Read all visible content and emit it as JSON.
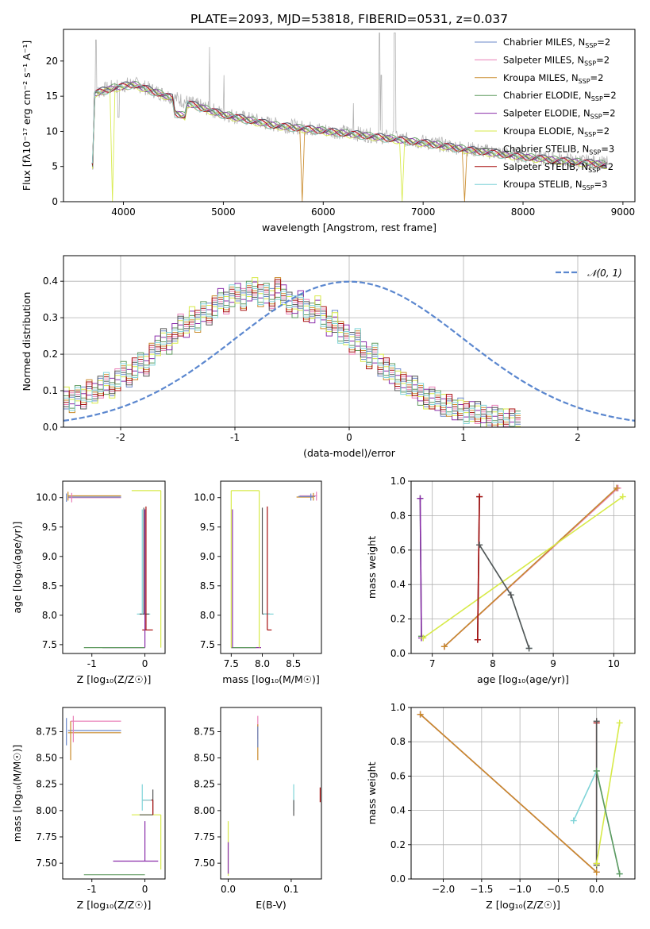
{
  "figure_title": "PLATE=2093, MJD=53818, FIBERID=0531, z=0.037",
  "colors": {
    "Chabrier MILES": "#6a87c9",
    "Salpeter MILES": "#e97fb7",
    "Kroupa MILES": "#c98a2a",
    "Chabrier ELODIE": "#5f9a5f",
    "Salpeter ELODIE": "#8a2eaa",
    "Kroupa ELODIE": "#d7ea48",
    "Chabrier STELIB": "#555555",
    "Salpeter STELIB": "#a80f0f",
    "Kroupa STELIB": "#80d4d8",
    "data": "#b4b4b4",
    "gauss": "#5b87cf",
    "grid": "#b0b0b0"
  },
  "chart_data": [
    {
      "id": "spectrum",
      "type": "line",
      "xlabel": "wavelength [Angstrom, rest frame]",
      "ylabel": "Flux [fλ10⁻¹⁷ erg cm⁻² s⁻¹ A⁻¹]",
      "xlim": [
        3400,
        9120
      ],
      "ylim": [
        0,
        24.5
      ],
      "xticks": [
        4000,
        5000,
        6000,
        7000,
        8000,
        9000
      ],
      "yticks": [
        0,
        5,
        10,
        15,
        20
      ],
      "grid": false,
      "legend_position": "top-right",
      "continuum": {
        "x": [
          3700,
          3900,
          4100,
          4300,
          4500,
          5000,
          5500,
          6000,
          6500,
          7000,
          7500,
          8000,
          8500,
          8850
        ],
        "y": [
          15.5,
          16.3,
          16.8,
          15.8,
          14.8,
          12.5,
          11.0,
          10.2,
          9.4,
          8.5,
          7.4,
          6.5,
          5.8,
          5.4
        ]
      },
      "dips": [
        {
          "series": "Kroupa ELODIE",
          "x": 3900
        },
        {
          "series": "Kroupa MILES",
          "x": 5790
        },
        {
          "series": "Kroupa ELODIE",
          "x": 6800
        },
        {
          "series": "Kroupa MILES",
          "x": 7420
        }
      ],
      "legend": [
        {
          "name": "Chabrier MILES",
          "label": "Chabrier MILES, N",
          "sub": "SSP",
          "suffix": "=2"
        },
        {
          "name": "Salpeter MILES",
          "label": "Salpeter MILES, N",
          "sub": "SSP",
          "suffix": "=2"
        },
        {
          "name": "Kroupa MILES",
          "label": "Kroupa MILES, N",
          "sub": "SSP",
          "suffix": "=2"
        },
        {
          "name": "Chabrier ELODIE",
          "label": "Chabrier ELODIE, N",
          "sub": "SSP",
          "suffix": "=2"
        },
        {
          "name": "Salpeter ELODIE",
          "label": "Salpeter ELODIE, N",
          "sub": "SSP",
          "suffix": "=2"
        },
        {
          "name": "Kroupa ELODIE",
          "label": "Kroupa ELODIE, N",
          "sub": "SSP",
          "suffix": "=2"
        },
        {
          "name": "Chabrier STELIB",
          "label": "Chabrier STELIB, N",
          "sub": "SSP",
          "suffix": "=3"
        },
        {
          "name": "Salpeter STELIB",
          "label": "Salpeter STELIB, N",
          "sub": "SSP",
          "suffix": "=2"
        },
        {
          "name": "Kroupa STELIB",
          "label": "Kroupa STELIB, N",
          "sub": "SSP",
          "suffix": "=3"
        }
      ]
    },
    {
      "id": "residual-histogram",
      "type": "line",
      "xlabel": "(data-model)/error",
      "ylabel": "Normed distribution",
      "xlim": [
        -2.5,
        2.5
      ],
      "ylim": [
        0,
        0.47
      ],
      "xticks": [
        -2,
        -1,
        0,
        1,
        2
      ],
      "yticks": [
        0.0,
        0.1,
        0.2,
        0.3,
        0.4
      ],
      "grid": true,
      "legend_position": "top-right",
      "legend": [
        {
          "name": "gauss",
          "label": "𝒩(0, 1)"
        }
      ],
      "bin_width": 0.1,
      "bin_start": -2.5,
      "base_values": [
        0.08,
        0.07,
        0.09,
        0.08,
        0.1,
        0.09,
        0.11,
        0.12,
        0.11,
        0.13,
        0.15,
        0.14,
        0.16,
        0.18,
        0.17,
        0.2,
        0.22,
        0.24,
        0.23,
        0.26,
        0.28,
        0.27,
        0.3,
        0.29,
        0.32,
        0.31,
        0.33,
        0.35,
        0.34,
        0.36,
        0.37,
        0.35,
        0.37,
        0.38,
        0.36,
        0.37,
        0.35,
        0.38,
        0.36,
        0.34,
        0.33,
        0.35,
        0.32,
        0.31,
        0.33,
        0.3,
        0.28,
        0.29,
        0.26,
        0.25,
        0.23,
        0.24,
        0.21,
        0.19,
        0.2,
        0.17,
        0.16,
        0.15,
        0.13,
        0.12,
        0.11,
        0.11,
        0.09,
        0.08,
        0.08,
        0.07,
        0.06,
        0.06,
        0.05,
        0.05,
        0.04,
        0.04,
        0.04,
        0.03,
        0.03,
        0.03,
        0.02,
        0.02,
        0.02,
        0.02
      ],
      "gauss": {
        "mean": 0,
        "sigma": 1
      }
    },
    {
      "id": "age-vs-Z",
      "type": "scatter",
      "xlabel": "Z [log₁₀(Z/Z☉)]",
      "ylabel": "age  [log₁₀(age/yr)]",
      "xlim": [
        -1.55,
        0.38
      ],
      "ylim": [
        7.35,
        10.28
      ],
      "xticks": [
        -1,
        0
      ],
      "yticks": [
        7.5,
        8.0,
        8.5,
        9.0,
        9.5,
        10.0
      ],
      "grid": false,
      "segments": [
        {
          "series": "Salpeter MILES",
          "x0": -1.45,
          "x1": -0.45,
          "y": 10.0
        },
        {
          "series": "Kroupa MILES",
          "x0": -1.45,
          "x1": -0.45,
          "y": 10.03
        },
        {
          "series": "Chabrier MILES",
          "x0": -1.45,
          "x1": -0.45,
          "y": 10.01
        },
        {
          "series": "Kroupa ELODIE",
          "x0": -0.25,
          "x1": 0.3,
          "y": 10.12
        },
        {
          "series": "Salpeter ELODIE",
          "x0": -0.8,
          "x1": 0.0,
          "y": 7.45
        },
        {
          "series": "Chabrier ELODIE",
          "x0": -1.15,
          "x1": 0.0,
          "y": 7.45
        },
        {
          "series": "Salpeter STELIB",
          "x0": -0.05,
          "x1": 0.15,
          "y": 7.75
        },
        {
          "series": "Kroupa STELIB",
          "x0": -0.15,
          "x1": 0.1,
          "y": 8.02
        },
        {
          "series": "Chabrier STELIB",
          "x0": -0.1,
          "x1": 0.08,
          "y": 8.02
        }
      ],
      "vsegments": [
        {
          "series": "Salpeter MILES",
          "x": -1.38,
          "y0": 9.92,
          "y1": 10.08
        },
        {
          "series": "Kroupa MILES",
          "x": -1.45,
          "y0": 9.95,
          "y1": 10.1
        },
        {
          "series": "Chabrier MILES",
          "x": -1.48,
          "y0": 9.93,
          "y1": 10.07
        },
        {
          "series": "Kroupa ELODIE",
          "x": 0.3,
          "y0": 7.45,
          "y1": 10.12
        },
        {
          "series": "Salpeter ELODIE",
          "x": 0.0,
          "y0": 7.45,
          "y1": 9.8
        },
        {
          "series": "Salpeter STELIB",
          "x": 0.02,
          "y0": 7.75,
          "y1": 9.85
        },
        {
          "series": "Chabrier STELIB",
          "x": -0.02,
          "y0": 8.02,
          "y1": 9.83
        },
        {
          "series": "Kroupa STELIB",
          "x": -0.05,
          "y0": 8.02,
          "y1": 9.8
        }
      ]
    },
    {
      "id": "age-vs-mass",
      "type": "scatter",
      "xlabel": "mass [log₁₀(M/M☉)]",
      "ylabel": "",
      "xlim": [
        7.33,
        8.95
      ],
      "ylim": [
        7.35,
        10.28
      ],
      "xticks": [
        7.5,
        8.0,
        8.5
      ],
      "yticks": [
        7.5,
        8.0,
        8.5,
        9.0,
        9.5,
        10.0
      ],
      "grid": false,
      "segments": [
        {
          "series": "Kroupa ELODIE",
          "x0": 7.5,
          "x1": 7.95,
          "y": 10.12
        },
        {
          "series": "Salpeter MILES",
          "x0": 8.6,
          "x1": 8.88,
          "y": 10.03
        },
        {
          "series": "Kroupa MILES",
          "x0": 8.55,
          "x1": 8.82,
          "y": 10.01
        },
        {
          "series": "Chabrier MILES",
          "x0": 8.58,
          "x1": 8.85,
          "y": 10.02
        },
        {
          "series": "Salpeter ELODIE",
          "x0": 7.5,
          "x1": 7.98,
          "y": 7.45
        },
        {
          "series": "Chabrier ELODIE",
          "x0": 7.5,
          "x1": 7.9,
          "y": 7.45
        },
        {
          "series": "Salpeter STELIB",
          "x0": 8.08,
          "x1": 8.15,
          "y": 7.75
        },
        {
          "series": "Chabrier STELIB",
          "x0": 8.0,
          "x1": 8.12,
          "y": 8.02
        },
        {
          "series": "Kroupa STELIB",
          "x0": 8.02,
          "x1": 8.18,
          "y": 8.02
        }
      ],
      "vsegments": [
        {
          "series": "Kroupa ELODIE",
          "x": 7.5,
          "y0": 7.45,
          "y1": 10.12
        },
        {
          "series": "Salpeter ELODIE",
          "x": 7.52,
          "y0": 7.45,
          "y1": 9.8
        },
        {
          "series": "Salpeter STELIB",
          "x": 8.08,
          "y0": 7.75,
          "y1": 9.85
        },
        {
          "series": "Chabrier STELIB",
          "x": 8.0,
          "y0": 8.02,
          "y1": 9.83
        },
        {
          "series": "Kroupa ELODIE",
          "x": 7.95,
          "y0": 7.45,
          "y1": 10.12
        },
        {
          "series": "Salpeter MILES",
          "x": 8.87,
          "y0": 9.95,
          "y1": 10.1
        },
        {
          "series": "Kroupa MILES",
          "x": 8.82,
          "y0": 9.95,
          "y1": 10.08
        },
        {
          "series": "Chabrier MILES",
          "x": 8.78,
          "y0": 9.95,
          "y1": 10.07
        }
      ]
    },
    {
      "id": "mass-weight-vs-age",
      "type": "line",
      "xlabel": "age  [log₁₀(age/yr)]",
      "ylabel": "mass weight",
      "xlim": [
        6.65,
        10.35
      ],
      "ylim": [
        0,
        1.0
      ],
      "xticks": [
        7,
        8,
        9,
        10
      ],
      "yticks": [
        0.0,
        0.2,
        0.4,
        0.6,
        0.8,
        1.0
      ],
      "grid": true,
      "series": [
        {
          "name": "Chabrier MILES",
          "x": [
            7.2,
            10.05
          ],
          "y": [
            0.04,
            0.96
          ]
        },
        {
          "name": "Salpeter MILES",
          "x": [
            7.2,
            10.07
          ],
          "y": [
            0.04,
            0.96
          ]
        },
        {
          "name": "Kroupa MILES",
          "x": [
            7.2,
            10.05
          ],
          "y": [
            0.04,
            0.96
          ]
        },
        {
          "name": "Chabrier ELODIE",
          "x": [
            6.82,
            6.8
          ],
          "y": [
            0.1,
            0.9
          ]
        },
        {
          "name": "Salpeter ELODIE",
          "x": [
            6.82,
            6.8
          ],
          "y": [
            0.09,
            0.9
          ]
        },
        {
          "name": "Kroupa ELODIE",
          "x": [
            6.85,
            10.15
          ],
          "y": [
            0.09,
            0.91
          ]
        },
        {
          "name": "Chabrier STELIB",
          "x": [
            7.75,
            7.78
          ],
          "y": [
            0.08,
            0.91
          ]
        },
        {
          "name": "Salpeter STELIB",
          "x": [
            7.75,
            7.78
          ],
          "y": [
            0.08,
            0.91
          ]
        },
        {
          "name": "Kroupa STELIB",
          "x": [
            7.78,
            8.3,
            8.6
          ],
          "y": [
            0.63,
            0.34,
            0.03
          ]
        },
        {
          "name": "Chabrier STELIB",
          "x": [
            7.78,
            8.3,
            8.6
          ],
          "y": [
            0.63,
            0.34,
            0.03
          ]
        }
      ]
    },
    {
      "id": "mass-vs-Z",
      "type": "scatter",
      "xlabel": "Z [log₁₀(Z/Z☉)]",
      "ylabel": "mass [log₁₀(M/M☉)]",
      "xlim": [
        -1.55,
        0.38
      ],
      "ylim": [
        7.35,
        8.98
      ],
      "xticks": [
        -1,
        0
      ],
      "yticks": [
        7.5,
        7.75,
        8.0,
        8.25,
        8.5,
        8.75
      ],
      "grid": false,
      "segments": [
        {
          "series": "Salpeter MILES",
          "x0": -1.4,
          "x1": -0.45,
          "y": 8.85
        },
        {
          "series": "Chabrier MILES",
          "x0": -1.45,
          "x1": -0.45,
          "y": 8.76
        },
        {
          "series": "Kroupa MILES",
          "x0": -1.45,
          "x1": -0.45,
          "y": 8.74
        },
        {
          "series": "Kroupa ELODIE",
          "x0": -0.25,
          "x1": 0.3,
          "y": 7.96
        },
        {
          "series": "Salpeter ELODIE",
          "x0": -0.6,
          "x1": 0.25,
          "y": 7.52
        },
        {
          "series": "Chabrier ELODIE",
          "x0": -1.15,
          "x1": 0.0,
          "y": 7.39
        },
        {
          "series": "Salpeter STELIB",
          "x0": -0.05,
          "x1": 0.15,
          "y": 8.1
        },
        {
          "series": "Chabrier STELIB",
          "x0": -0.1,
          "x1": 0.15,
          "y": 7.96
        },
        {
          "series": "Kroupa STELIB",
          "x0": -0.05,
          "x1": 0.12,
          "y": 8.1
        }
      ],
      "vsegments": [
        {
          "series": "Salpeter MILES",
          "x": -1.35,
          "y0": 8.65,
          "y1": 8.9
        },
        {
          "series": "Kroupa MILES",
          "x": -1.4,
          "y0": 8.48,
          "y1": 8.85
        },
        {
          "series": "Chabrier MILES",
          "x": -1.48,
          "y0": 8.62,
          "y1": 8.88
        },
        {
          "series": "Kroupa ELODIE",
          "x": 0.3,
          "y0": 7.44,
          "y1": 7.96
        },
        {
          "series": "Salpeter ELODIE",
          "x": 0.0,
          "y0": 7.52,
          "y1": 7.9
        },
        {
          "series": "Chabrier STELIB",
          "x": 0.15,
          "y0": 7.96,
          "y1": 8.2
        },
        {
          "series": "Salpeter STELIB",
          "x": 0.15,
          "y0": 7.96,
          "y1": 8.1
        },
        {
          "series": "Kroupa STELIB",
          "x": -0.05,
          "y0": 8.0,
          "y1": 8.25
        }
      ]
    },
    {
      "id": "mass-vs-EBV",
      "type": "scatter",
      "xlabel": "E(B-V)",
      "ylabel": "",
      "xlim": [
        -0.012,
        0.148
      ],
      "ylim": [
        7.35,
        8.98
      ],
      "xticks": [
        0.0,
        0.1
      ],
      "yticks": [
        7.5,
        7.75,
        8.0,
        8.25,
        8.5,
        8.75
      ],
      "grid": false,
      "vsegments": [
        {
          "series": "Salpeter MILES",
          "x": 0.047,
          "y0": 8.68,
          "y1": 8.9
        },
        {
          "series": "Kroupa MILES",
          "x": 0.047,
          "y0": 8.48,
          "y1": 8.82
        },
        {
          "series": "Chabrier MILES",
          "x": 0.047,
          "y0": 8.6,
          "y1": 8.8
        },
        {
          "series": "Kroupa ELODIE",
          "x": 0.0,
          "y0": 7.38,
          "y1": 7.9
        },
        {
          "series": "Salpeter ELODIE",
          "x": 0.0,
          "y0": 7.4,
          "y1": 7.7
        },
        {
          "series": "Kroupa STELIB",
          "x": 0.104,
          "y0": 8.0,
          "y1": 8.25
        },
        {
          "series": "Chabrier STELIB",
          "x": 0.104,
          "y0": 7.95,
          "y1": 8.1
        },
        {
          "series": "Salpeter STELIB",
          "x": 0.146,
          "y0": 8.08,
          "y1": 8.22
        }
      ]
    },
    {
      "id": "mass-weight-vs-Z",
      "type": "line",
      "xlabel": "Z [log₁₀(Z/Z☉)]",
      "ylabel": "mass weight",
      "xlim": [
        -2.42,
        0.5
      ],
      "ylim": [
        0,
        1.0
      ],
      "xticks": [
        -2.0,
        -1.5,
        -1.0,
        -0.5,
        0.0
      ],
      "yticks": [
        0.0,
        0.2,
        0.4,
        0.6,
        0.8,
        1.0
      ],
      "grid": true,
      "series": [
        {
          "name": "Chabrier MILES",
          "x": [
            -2.3,
            0.0
          ],
          "y": [
            0.96,
            0.04
          ]
        },
        {
          "name": "Salpeter MILES",
          "x": [
            -2.3,
            0.0
          ],
          "y": [
            0.96,
            0.04
          ]
        },
        {
          "name": "Kroupa MILES",
          "x": [
            -2.3,
            0.0
          ],
          "y": [
            0.96,
            0.04
          ]
        },
        {
          "name": "Salpeter STELIB",
          "x": [
            0.0,
            0.0
          ],
          "y": [
            0.09,
            0.91
          ]
        },
        {
          "name": "Chabrier STELIB",
          "x": [
            0.0,
            0.0
          ],
          "y": [
            0.08,
            0.92
          ]
        },
        {
          "name": "Kroupa ELODIE",
          "x": [
            0.0,
            0.3
          ],
          "y": [
            0.09,
            0.91
          ]
        },
        {
          "name": "Kroupa STELIB",
          "x": [
            -0.3,
            0.0,
            0.3
          ],
          "y": [
            0.34,
            0.63,
            0.03
          ]
        },
        {
          "name": "Chabrier ELODIE",
          "x": [
            0.0,
            0.3
          ],
          "y": [
            0.63,
            0.03
          ]
        }
      ]
    }
  ]
}
